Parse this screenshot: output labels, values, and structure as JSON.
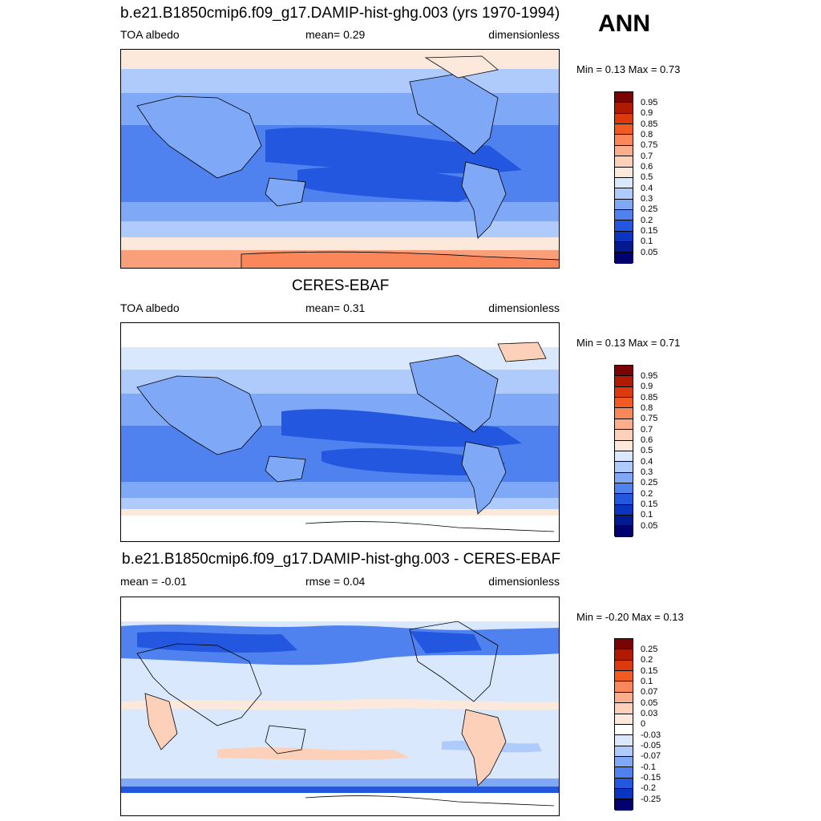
{
  "season": "ANN",
  "panels": [
    {
      "title": "b.e21.B1850cmip6.f09_g17.DAMIP-hist-ghg.003 (yrs 1970-1994)",
      "left_text": "TOA albedo",
      "center_text": "mean=   0.29",
      "right_text": "dimensionless",
      "minmax": "Min =   0.13 Max =   0.73",
      "colorbar": {
        "labels": [
          "0.95",
          "0.9",
          "0.85",
          "0.8",
          "0.75",
          "0.7",
          "0.6",
          "0.5",
          "0.4",
          "0.3",
          "0.25",
          "0.2",
          "0.15",
          "0.1",
          "0.05"
        ],
        "colors": [
          "#7a0403",
          "#b01a00",
          "#dc3a0c",
          "#f25a22",
          "#f9875a",
          "#fbae8b",
          "#fcd0b9",
          "#fde8dc",
          "#d9e8fc",
          "#aecbfb",
          "#7fa8f6",
          "#4f82ee",
          "#2457df",
          "#0a35c1",
          "#03198f",
          "#00006e"
        ]
      }
    },
    {
      "title": "CERES-EBAF",
      "left_text": "TOA albedo",
      "center_text": "mean=   0.31",
      "right_text": "dimensionless",
      "minmax": "Min =   0.13 Max =   0.71",
      "colorbar": {
        "labels": [
          "0.95",
          "0.9",
          "0.85",
          "0.8",
          "0.75",
          "0.7",
          "0.6",
          "0.5",
          "0.4",
          "0.3",
          "0.25",
          "0.2",
          "0.15",
          "0.1",
          "0.05"
        ],
        "colors": [
          "#7a0403",
          "#b01a00",
          "#dc3a0c",
          "#f25a22",
          "#f9875a",
          "#fbae8b",
          "#fcd0b9",
          "#fde8dc",
          "#d9e8fc",
          "#aecbfb",
          "#7fa8f6",
          "#4f82ee",
          "#2457df",
          "#0a35c1",
          "#03198f",
          "#00006e"
        ]
      }
    },
    {
      "title": "b.e21.B1850cmip6.f09_g17.DAMIP-hist-ghg.003 - CERES-EBAF",
      "left_text": "mean =  -0.01",
      "center_text": "rmse =   0.04",
      "right_text": "dimensionless",
      "minmax": "Min =  -0.20 Max =   0.13",
      "colorbar": {
        "labels": [
          "0.25",
          "0.2",
          "0.15",
          "0.1",
          "0.07",
          "0.05",
          "0.03",
          "0",
          "-0.03",
          "-0.05",
          "-0.07",
          "-0.1",
          "-0.15",
          "-0.2",
          "-0.25"
        ],
        "colors": [
          "#7a0403",
          "#b01a00",
          "#dc3a0c",
          "#f25a22",
          "#f9875a",
          "#fbae8b",
          "#fcd0b9",
          "#fde8dc",
          "#ffffff",
          "#d9e8fc",
          "#aecbfb",
          "#7fa8f6",
          "#4f82ee",
          "#2457df",
          "#0a35c1",
          "#00006e"
        ]
      }
    }
  ]
}
